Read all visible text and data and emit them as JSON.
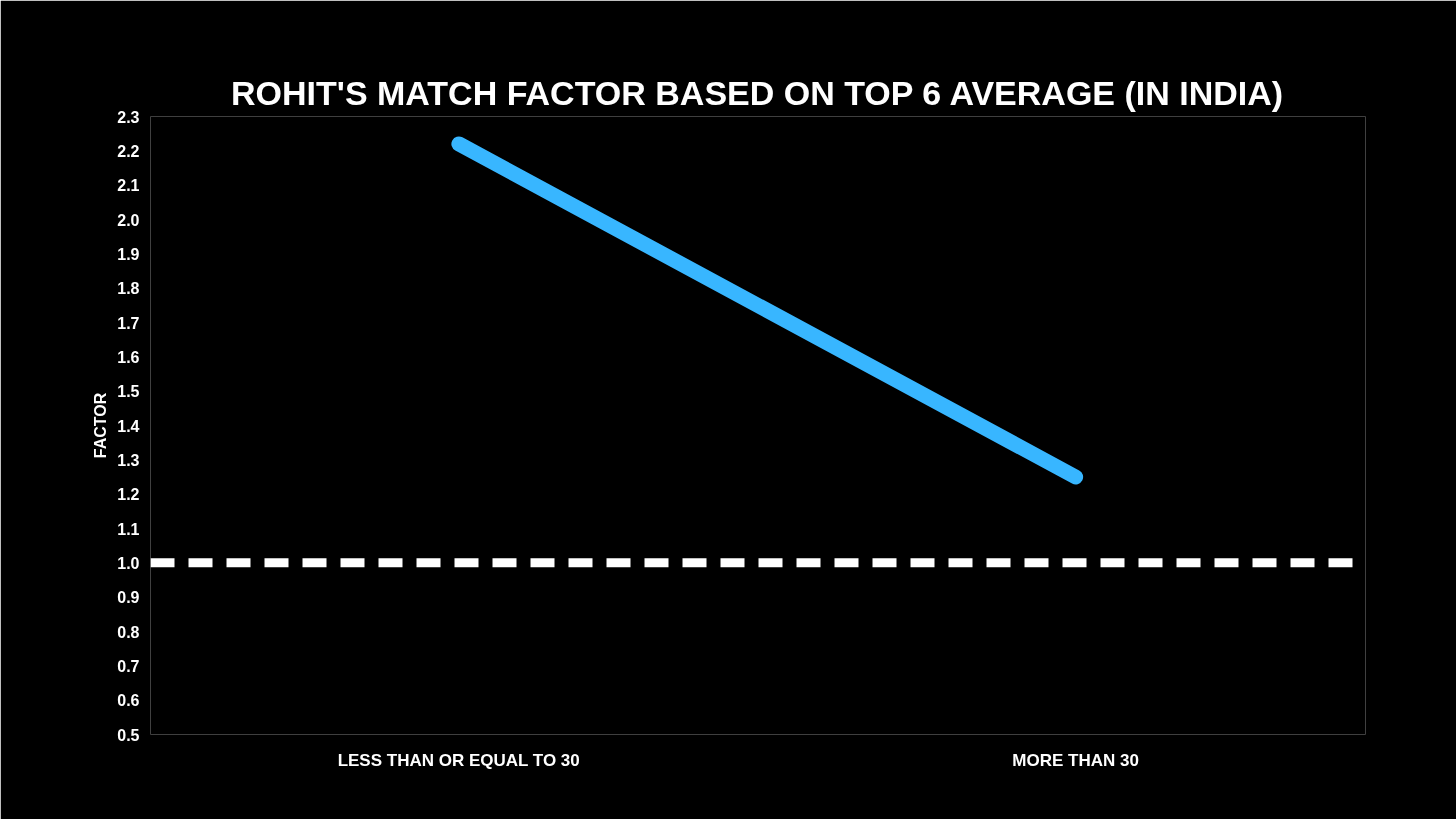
{
  "chart_data": {
    "type": "line",
    "title": "ROHIT'S MATCH FACTOR BASED ON TOP 6 AVERAGE (IN INDIA)",
    "ylabel": "FACTOR",
    "categories": [
      "LESS THAN OR EQUAL TO 30",
      "MORE THAN 30"
    ],
    "series": [
      {
        "color": "#38b6ff",
        "values": [
          2.22,
          1.25
        ]
      }
    ],
    "ylim": [
      0.5,
      2.3
    ],
    "yticks": [
      0.5,
      0.6,
      0.7,
      0.8,
      0.9,
      {
        "value": 1.0,
        "label": "1.0"
      },
      1.1,
      1.2,
      1.3,
      1.4,
      1.5,
      1.6,
      1.7,
      1.8,
      1.9,
      {
        "value": 2.0,
        "label": "2.0"
      },
      2.1,
      2.2,
      2.3
    ],
    "ref_lines": [
      {
        "axis": "y",
        "value": 1.0,
        "label": null,
        "color": "#ffffff",
        "line_style": "dashed"
      }
    ],
    "grid": false,
    "marker": "none",
    "line_style": "solid"
  }
}
